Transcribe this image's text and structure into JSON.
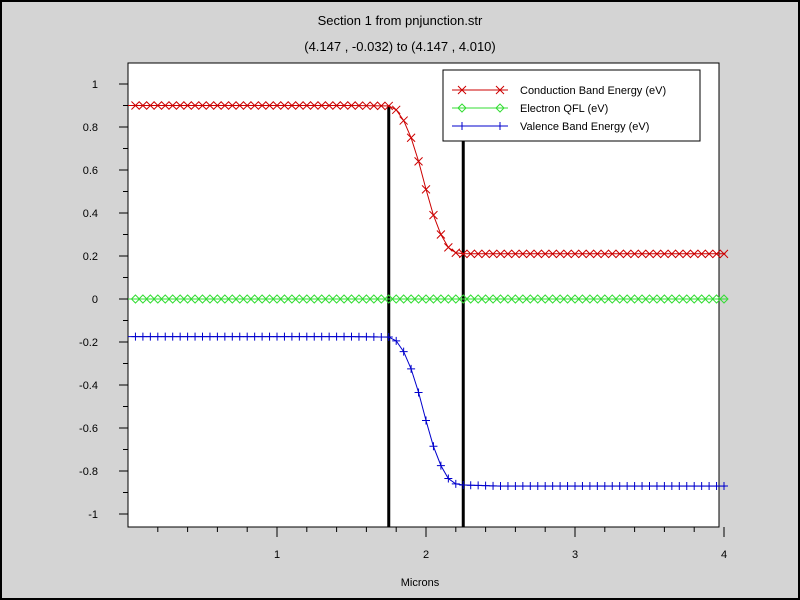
{
  "chart_data": {
    "type": "line",
    "title": "Section 1 from pnjunction.str",
    "subtitle": "(4.147 , -0.032) to (4.147 , 4.010)",
    "xlabel": "Microns",
    "ylabel": "",
    "xlim": [
      0.0,
      4.01
    ],
    "ylim": [
      -1.05,
      1.05
    ],
    "x_ticks": [
      "1",
      "2",
      "3",
      "4"
    ],
    "y_ticks": [
      "1",
      "0.8",
      "0.6",
      "0.4",
      "0.2",
      "0",
      "-0.2",
      "-0.4",
      "-0.6",
      "-0.8",
      "-1"
    ],
    "grid": false,
    "legend_position": "top-right",
    "series": [
      {
        "name": "Conduction Band Energy (eV)",
        "color": "#cc0000",
        "marker": "x",
        "x": [
          0.0,
          0.5,
          1.0,
          1.5,
          1.75,
          1.8,
          1.85,
          1.9,
          1.95,
          2.0,
          2.05,
          2.1,
          2.15,
          2.2,
          2.25,
          2.5,
          3.0,
          3.5,
          4.01
        ],
        "values": [
          0.9,
          0.9,
          0.9,
          0.9,
          0.898,
          0.88,
          0.83,
          0.75,
          0.64,
          0.51,
          0.39,
          0.3,
          0.24,
          0.215,
          0.21,
          0.21,
          0.21,
          0.21,
          0.21
        ]
      },
      {
        "name": "Electron QFL (eV)",
        "color": "#33dd33",
        "marker": "diamond",
        "x": [
          0.0,
          1.0,
          2.0,
          3.0,
          4.01
        ],
        "values": [
          0.0,
          0.0,
          0.0,
          0.0,
          0.0
        ]
      },
      {
        "name": "Valence Band Energy (eV)",
        "color": "#0000cc",
        "marker": "plus",
        "x": [
          0.0,
          0.5,
          1.0,
          1.5,
          1.75,
          1.8,
          1.85,
          1.9,
          1.95,
          2.0,
          2.05,
          2.1,
          2.15,
          2.2,
          2.25,
          2.5,
          3.0,
          3.5,
          4.01
        ],
        "values": [
          -0.175,
          -0.175,
          -0.175,
          -0.175,
          -0.177,
          -0.195,
          -0.245,
          -0.325,
          -0.435,
          -0.565,
          -0.685,
          -0.775,
          -0.835,
          -0.86,
          -0.865,
          -0.87,
          -0.87,
          -0.87,
          -0.87
        ]
      }
    ],
    "vertical_lines_x": [
      1.75,
      2.25
    ]
  }
}
